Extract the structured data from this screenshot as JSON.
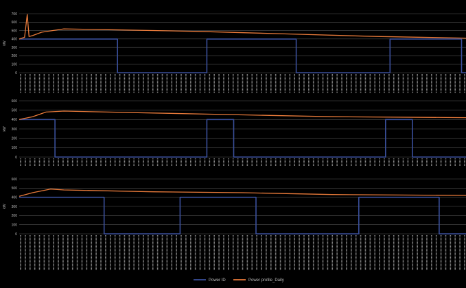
{
  "chart_data": [
    {
      "type": "line",
      "ylabel": "kW",
      "ylim": [
        0,
        700
      ],
      "yticks": [
        "0",
        "100",
        "200",
        "300",
        "400",
        "500",
        "600",
        "700"
      ],
      "grid": true,
      "series": [
        {
          "name": "Power ID",
          "color": "#3a4f9b",
          "x": [
            0,
            0.22,
            0.22,
            0.42,
            0.42,
            0.62,
            0.62,
            0.83,
            0.83,
            0.99,
            0.99,
            1
          ],
          "y": [
            400,
            400,
            0,
            0,
            400,
            400,
            0,
            0,
            400,
            400,
            0,
            0
          ]
        },
        {
          "name": "Power profile_Daily",
          "color": "#e87a3a",
          "x": [
            0,
            0.012,
            0.018,
            0.022,
            0.03,
            0.05,
            0.1,
            0.2,
            0.4,
            0.6,
            0.8,
            1
          ],
          "y": [
            400,
            420,
            690,
            430,
            440,
            480,
            520,
            510,
            490,
            460,
            430,
            410
          ]
        }
      ]
    },
    {
      "type": "line",
      "ylabel": "kW",
      "ylim": [
        0,
        600
      ],
      "yticks": [
        "0",
        "100",
        "200",
        "300",
        "400",
        "500",
        "600"
      ],
      "grid": true,
      "series": [
        {
          "name": "Power ID",
          "color": "#3a4f9b",
          "x": [
            0,
            0.08,
            0.08,
            0.42,
            0.42,
            0.48,
            0.48,
            0.82,
            0.82,
            0.88,
            0.88,
            1
          ],
          "y": [
            400,
            400,
            0,
            0,
            400,
            400,
            0,
            0,
            400,
            400,
            0,
            0
          ]
        },
        {
          "name": "Power profile_Daily",
          "color": "#e87a3a",
          "x": [
            0,
            0.03,
            0.06,
            0.1,
            0.3,
            0.5,
            0.7,
            1
          ],
          "y": [
            400,
            430,
            480,
            490,
            470,
            450,
            430,
            420
          ]
        }
      ]
    },
    {
      "type": "line",
      "ylabel": "kW",
      "ylim": [
        0,
        600
      ],
      "yticks": [
        "0",
        "100",
        "200",
        "300",
        "400",
        "500",
        "600"
      ],
      "grid": true,
      "series": [
        {
          "name": "Power ID",
          "color": "#3a4f9b",
          "x": [
            0,
            0.19,
            0.19,
            0.36,
            0.36,
            0.53,
            0.53,
            0.76,
            0.76,
            0.94,
            0.94,
            1
          ],
          "y": [
            400,
            400,
            0,
            0,
            400,
            400,
            0,
            0,
            400,
            400,
            0,
            0
          ]
        },
        {
          "name": "Power profile_Daily",
          "color": "#e87a3a",
          "x": [
            0,
            0.03,
            0.07,
            0.1,
            0.3,
            0.5,
            0.7,
            1
          ],
          "y": [
            410,
            450,
            490,
            480,
            460,
            450,
            430,
            420
          ]
        }
      ]
    }
  ],
  "legend": {
    "placement": "bottom-center",
    "entries": [
      {
        "label": "Power ID",
        "color": "#3a4f9b"
      },
      {
        "label": "Power profile_Daily",
        "color": "#e87a3a"
      }
    ]
  }
}
